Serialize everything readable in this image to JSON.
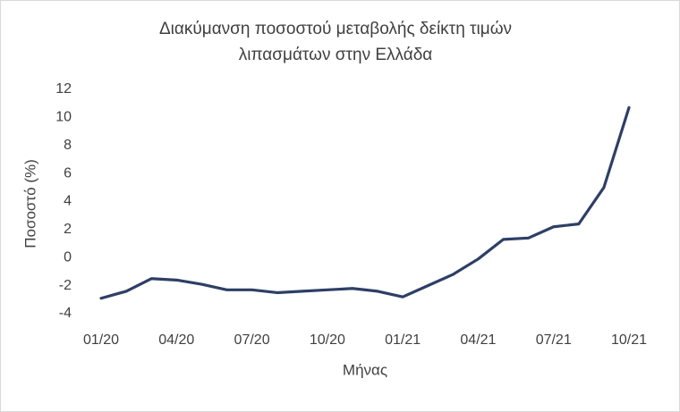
{
  "chart_data": {
    "type": "line",
    "title": [
      "Διακύμανση ποσοστού μεταβολής δείκτη τιμών",
      "λιπασμάτων στην Ελλάδα"
    ],
    "x_label": "Μήνας",
    "y_label": "Ποσοστό (%)",
    "categories": [
      "01/20",
      null,
      null,
      "04/20",
      null,
      null,
      "07/20",
      null,
      null,
      "10/20",
      null,
      null,
      "01/21",
      null,
      null,
      "04/21",
      null,
      null,
      "07/21",
      null,
      null,
      "10/21"
    ],
    "series": [
      {
        "color": "#2e3f66",
        "values": [
          -2.9,
          -2.4,
          -1.5,
          -1.6,
          -1.9,
          -2.3,
          -2.3,
          -2.5,
          -2.4,
          -2.3,
          -2.2,
          -2.4,
          -2.8,
          -2.0,
          -1.2,
          -0.1,
          1.3,
          1.4,
          2.2,
          2.4,
          5.0,
          10.7
        ]
      }
    ],
    "ylim": [
      -4,
      12
    ],
    "yticks": [
      -4,
      -2,
      0,
      2,
      4,
      6,
      8,
      10,
      12
    ],
    "grid": false
  }
}
